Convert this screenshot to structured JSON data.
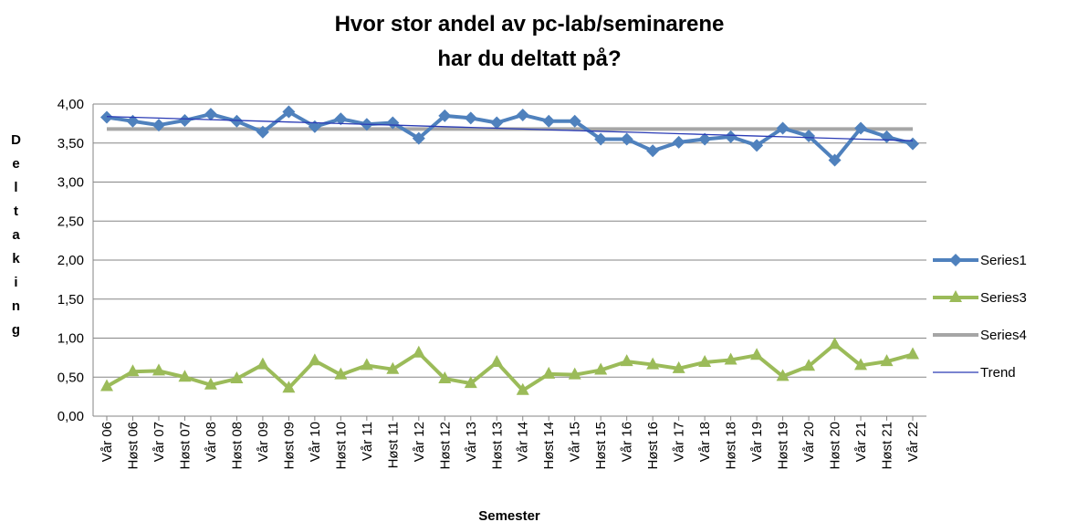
{
  "chart_data": {
    "type": "line",
    "title": [
      "Hvor stor andel av pc-lab/seminarene",
      "har du deltatt på?"
    ],
    "x_label": "Semester",
    "y_label": "Deltaking",
    "categories": [
      "Vår 06",
      "Høst 06",
      "Vår 07",
      "Høst 07",
      "Vår 08",
      "Høst 08",
      "Vår 09",
      "Høst 09",
      "Vår 10",
      "Høst 10",
      "Vår 11",
      "Høst 11",
      "Vår 12",
      "Høst 12",
      "Vår 13",
      "Høst 13",
      "Vår 14",
      "Høst 14",
      "Vår 15",
      "Høst 15",
      "Vår 16",
      "Høst 16",
      "Vår 17",
      "Vår 18",
      "Høst 18",
      "Vår 19",
      "Høst 19",
      "Vår 20",
      "Høst 20",
      "Vår 21",
      "Høst 21",
      "Vår 22"
    ],
    "series": [
      {
        "name": "Series1",
        "color": "#4f81bd",
        "marker": "diamond",
        "values": [
          3.83,
          3.78,
          3.73,
          3.79,
          3.87,
          3.78,
          3.64,
          3.9,
          3.71,
          3.81,
          3.74,
          3.76,
          3.56,
          3.85,
          3.82,
          3.76,
          3.86,
          3.78,
          3.78,
          3.55,
          3.55,
          3.4,
          3.51,
          3.55,
          3.58,
          3.47,
          3.69,
          3.59,
          3.28,
          3.69,
          3.58,
          3.49
        ]
      },
      {
        "name": "Series3",
        "color": "#9bbb59",
        "marker": "triangle",
        "values": [
          0.38,
          0.57,
          0.58,
          0.5,
          0.4,
          0.48,
          0.66,
          0.36,
          0.71,
          0.53,
          0.65,
          0.6,
          0.81,
          0.48,
          0.42,
          0.69,
          0.33,
          0.54,
          0.53,
          0.59,
          0.7,
          0.66,
          0.61,
          0.69,
          0.72,
          0.78,
          0.51,
          0.64,
          0.92,
          0.65,
          0.7,
          0.79
        ]
      },
      {
        "name": "Series4",
        "color": "#a6a6a6",
        "values": [
          3.68,
          3.68,
          3.68,
          3.68,
          3.68,
          3.68,
          3.68,
          3.68,
          3.68,
          3.68,
          3.68,
          3.68,
          3.68,
          3.68,
          3.68,
          3.68,
          3.68,
          3.68,
          3.68,
          3.68,
          3.68,
          3.68,
          3.68,
          3.68,
          3.68,
          3.68,
          3.68,
          3.68,
          3.68,
          3.68,
          3.68,
          3.68
        ]
      },
      {
        "name": "Trend",
        "color": "#2a3bb5",
        "values": [
          3.84,
          3.83,
          3.82,
          3.81,
          3.8,
          3.79,
          3.78,
          3.77,
          3.76,
          3.75,
          3.74,
          3.73,
          3.72,
          3.71,
          3.7,
          3.69,
          3.68,
          3.67,
          3.66,
          3.65,
          3.64,
          3.63,
          3.62,
          3.61,
          3.6,
          3.59,
          3.58,
          3.57,
          3.56,
          3.55,
          3.54,
          3.53
        ]
      }
    ],
    "ylim": [
      0,
      4
    ],
    "yticks": [
      {
        "value": 0,
        "label": "0,00"
      },
      {
        "value": 0.5,
        "label": "0,50"
      },
      {
        "value": 1,
        "label": "1,00"
      },
      {
        "value": 1.5,
        "label": "1,50"
      },
      {
        "value": 2,
        "label": "2,00"
      },
      {
        "value": 2.5,
        "label": "2,50"
      },
      {
        "value": 3,
        "label": "3,00"
      },
      {
        "value": 3.5,
        "label": "3,50"
      },
      {
        "value": 4,
        "label": "4,00"
      }
    ],
    "grid": true,
    "legend": "right"
  }
}
